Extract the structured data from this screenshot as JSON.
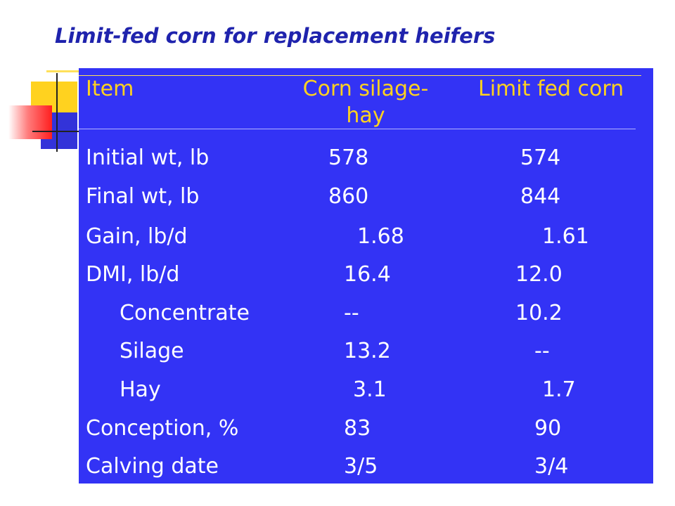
{
  "slide": {
    "title": "Limit-fed corn for replacement heifers"
  },
  "table": {
    "columns": [
      "Item",
      "Corn silage-hay",
      "Limit fed corn"
    ],
    "rows": [
      {
        "item": "Initial wt, lb",
        "corn_silage_hay": "578",
        "limit_fed_corn": "574"
      },
      {
        "item": "Final wt, lb",
        "corn_silage_hay": "860",
        "limit_fed_corn": "844"
      },
      {
        "item": "Gain, lb/d",
        "corn_silage_hay": "1.68",
        "limit_fed_corn": "1.61"
      },
      {
        "item": "DMI, lb/d",
        "corn_silage_hay": "16.4",
        "limit_fed_corn": "12.0"
      },
      {
        "item": "Concentrate",
        "corn_silage_hay": "--",
        "limit_fed_corn": "10.2"
      },
      {
        "item": "Silage",
        "corn_silage_hay": "13.2",
        "limit_fed_corn": "--"
      },
      {
        "item": "Hay",
        "corn_silage_hay": "3.1",
        "limit_fed_corn": "1.7"
      },
      {
        "item": "Conception, %",
        "corn_silage_hay": "83",
        "limit_fed_corn": "90"
      },
      {
        "item": "Calving date",
        "corn_silage_hay": "3/5",
        "limit_fed_corn": "3/4"
      }
    ]
  },
  "colors": {
    "title": "#1f23ad",
    "panel": "#3333f5",
    "header_text": "#ffd21f",
    "body_text": "#ffffff"
  }
}
